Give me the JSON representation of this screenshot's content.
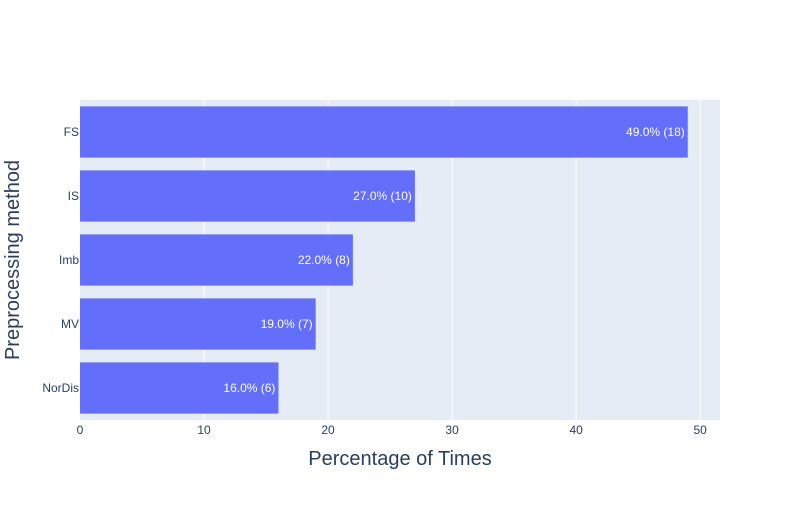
{
  "chart_data": {
    "type": "bar",
    "orientation": "horizontal",
    "title": "",
    "xlabel": "Percentage of Times",
    "ylabel": "Preprocessing method",
    "categories": [
      "FS",
      "IS",
      "Imb",
      "MV",
      "NorDis"
    ],
    "values": [
      49.0,
      27.0,
      22.0,
      19.0,
      16.0
    ],
    "counts": [
      18,
      10,
      8,
      7,
      6
    ],
    "data_labels": [
      "49.0% (18)",
      "27.0% (10)",
      "22.0% (8)",
      "19.0% (7)",
      "16.0% (6)"
    ],
    "xlim": [
      0,
      51.6
    ],
    "xticks": [
      0,
      10,
      20,
      30,
      40,
      50
    ],
    "grid": true,
    "colors": {
      "bar": "#636efa",
      "plot_background": "#e5ecf6",
      "gridline": "#ffffff",
      "label_text": "#2a3f5f",
      "data_label_text": "#ffffff"
    }
  }
}
